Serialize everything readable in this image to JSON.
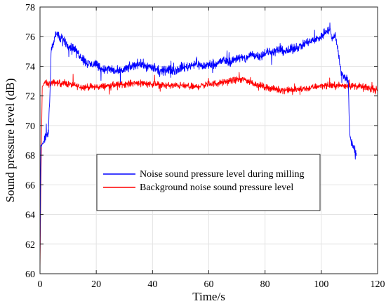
{
  "chart_data": {
    "type": "line",
    "title": "",
    "xlabel": "Time/s",
    "ylabel": "Sound pressure level (dB)",
    "xlim": [
      0,
      120
    ],
    "ylim": [
      60,
      78
    ],
    "xticks": [
      0,
      20,
      40,
      60,
      80,
      100,
      120
    ],
    "yticks": [
      60,
      62,
      64,
      66,
      68,
      70,
      72,
      74,
      76,
      78
    ],
    "grid": true,
    "legend_position": "center-left",
    "series": [
      {
        "name": "Noise sound pressure level during milling",
        "color": "#0000ff",
        "noise": 0.45,
        "x": [
          0,
          0.3,
          1.5,
          3.0,
          3.6,
          4.0,
          5.0,
          6.0,
          7.0,
          8.0,
          10.0,
          12.0,
          14.0,
          16.0,
          18.0,
          20.0,
          22.0,
          25.0,
          28.0,
          30.0,
          33.0,
          35.0,
          38.0,
          40.0,
          43.0,
          45.0,
          48.0,
          50.0,
          53.0,
          55.0,
          58.0,
          60.0,
          63.0,
          65.0,
          68.0,
          70.0,
          73.0,
          75.0,
          78.0,
          80.0,
          83.0,
          85.0,
          88.0,
          90.0,
          93.0,
          95.0,
          98.0,
          100.0,
          102.0,
          103.0,
          104.0,
          105.0,
          106.0,
          107.0,
          108.0,
          109.0,
          109.6,
          110.0,
          110.5,
          111.0,
          111.5,
          112.0,
          112.5
        ],
        "y": [
          61.0,
          68.6,
          69.0,
          69.6,
          72.5,
          75.2,
          75.8,
          76.3,
          75.8,
          75.9,
          75.4,
          75.2,
          74.8,
          74.3,
          74.1,
          74.2,
          73.8,
          73.8,
          73.6,
          73.8,
          74.0,
          74.2,
          74.0,
          73.9,
          73.6,
          73.8,
          73.7,
          73.9,
          74.0,
          74.2,
          74.0,
          74.1,
          74.2,
          74.4,
          74.3,
          74.6,
          74.5,
          74.8,
          74.7,
          74.9,
          75.0,
          75.1,
          75.0,
          75.2,
          75.4,
          75.6,
          75.8,
          76.0,
          76.5,
          76.4,
          75.8,
          76.2,
          75.0,
          73.6,
          73.3,
          73.2,
          72.8,
          69.6,
          69.0,
          68.8,
          68.5,
          68.2,
          68.0
        ]
      },
      {
        "name": "Background noise sound pressure level",
        "color": "#ff0000",
        "noise": 0.32,
        "x": [
          0,
          0.3,
          0.8,
          1.5,
          3.0,
          5.0,
          10.0,
          15.0,
          20.0,
          25.0,
          30.0,
          35.0,
          40.0,
          45.0,
          50.0,
          55.0,
          60.0,
          65.0,
          70.0,
          73.0,
          75.0,
          80.0,
          85.0,
          90.0,
          95.0,
          100.0,
          105.0,
          110.0,
          115.0,
          120.0
        ],
        "y": [
          60.2,
          66.0,
          72.6,
          72.9,
          72.8,
          72.9,
          72.8,
          72.6,
          72.6,
          72.7,
          72.8,
          72.9,
          72.8,
          72.7,
          72.7,
          72.6,
          72.8,
          72.9,
          73.1,
          73.1,
          72.9,
          72.6,
          72.4,
          72.4,
          72.5,
          72.7,
          72.7,
          72.7,
          72.6,
          72.4
        ]
      }
    ]
  }
}
